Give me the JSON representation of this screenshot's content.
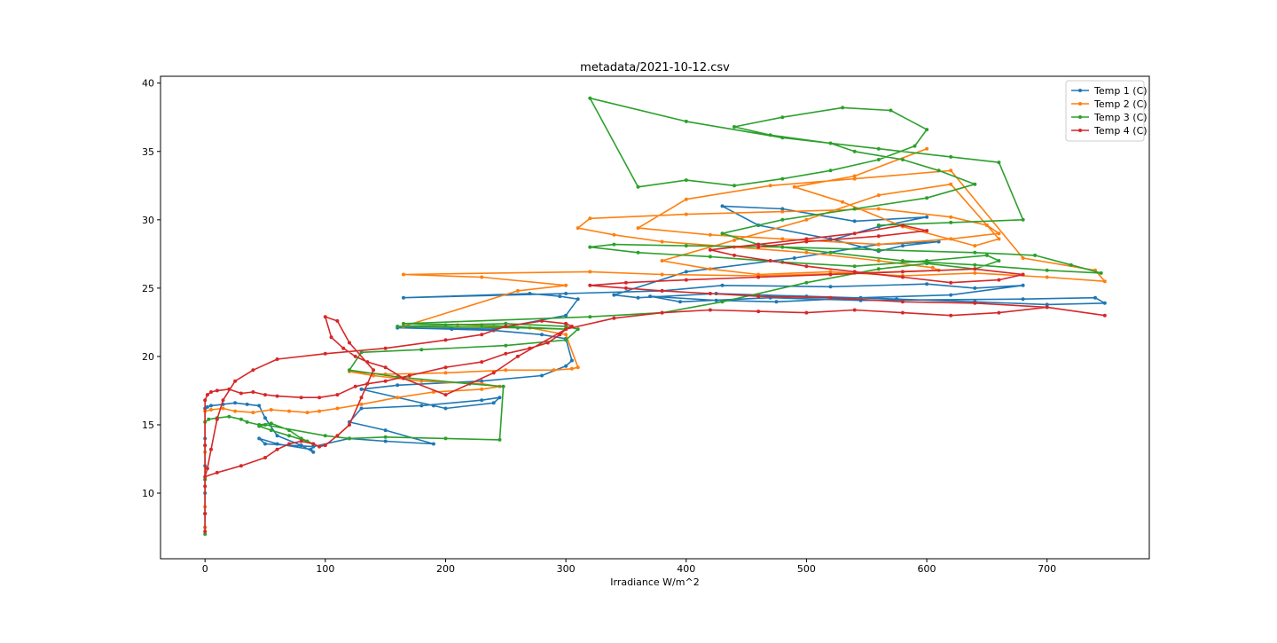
{
  "chart_data": {
    "type": "line",
    "title": "metadata/2021-10-12.csv",
    "xlabel": "Irradiance W/m^2",
    "ylabel": "",
    "xlim": [
      -37,
      785
    ],
    "ylim": [
      5.2,
      40.5
    ],
    "xticks": [
      0,
      100,
      200,
      300,
      400,
      500,
      600,
      700
    ],
    "yticks": [
      10,
      15,
      20,
      25,
      30,
      35,
      40
    ],
    "grid": false,
    "legend_position": "top-right",
    "marker": "circle",
    "series": [
      {
        "name": "Temp 1 (C)",
        "color": "#1f77b4",
        "x": [
          0,
          0,
          0,
          0,
          0,
          0,
          2,
          5,
          15,
          25,
          35,
          45,
          50,
          60,
          80,
          90,
          88,
          60,
          45,
          50,
          90,
          120,
          150,
          190,
          150,
          120,
          130,
          180,
          230,
          245,
          240,
          200,
          190,
          130,
          160,
          230,
          280,
          300,
          305,
          300,
          280,
          240,
          205,
          160,
          240,
          300,
          310,
          295,
          270,
          165,
          300,
          380,
          430,
          520,
          600,
          640,
          680,
          620,
          545,
          475,
          425,
          370,
          395,
          470,
          545,
          680,
          740,
          748,
          700,
          640,
          575,
          500,
          425,
          360,
          340,
          400,
          490,
          560,
          610,
          580,
          560,
          520,
          460,
          430,
          480,
          540,
          600,
          560,
          520
        ],
        "y": [
          7.5,
          8.5,
          10,
          12,
          14,
          16.2,
          16.3,
          16.4,
          16.5,
          16.6,
          16.5,
          16.4,
          15.5,
          14.2,
          13.5,
          13.0,
          13.2,
          13.6,
          14.0,
          13.6,
          13.4,
          14.0,
          13.8,
          13.6,
          14.6,
          15.2,
          16.2,
          16.4,
          16.8,
          17.0,
          16.6,
          16.2,
          16.4,
          17.6,
          17.9,
          18.2,
          18.6,
          19.3,
          19.7,
          21.3,
          21.6,
          21.9,
          22.0,
          22.1,
          22.0,
          23.0,
          24.2,
          24.4,
          24.6,
          24.3,
          24.6,
          24.8,
          25.2,
          25.1,
          25.3,
          25.0,
          25.2,
          24.5,
          24.3,
          24.0,
          24.1,
          24.4,
          24.0,
          24.3,
          24.1,
          24.2,
          24.3,
          23.9,
          23.8,
          24.0,
          24.2,
          24.4,
          24.6,
          24.3,
          24.5,
          26.2,
          27.2,
          28.2,
          28.4,
          28.1,
          27.7,
          28.6,
          29.6,
          31.0,
          30.8,
          29.9,
          30.2,
          29.5,
          28.5
        ]
      },
      {
        "name": "Temp 2 (C)",
        "color": "#ff7f0e",
        "x": [
          0,
          0,
          0,
          0,
          0,
          5,
          15,
          25,
          40,
          55,
          70,
          85,
          95,
          110,
          130,
          160,
          190,
          230,
          245,
          230,
          180,
          140,
          120,
          150,
          200,
          250,
          290,
          305,
          310,
          300,
          270,
          240,
          210,
          165,
          260,
          300,
          230,
          165,
          320,
          380,
          460,
          540,
          610,
          605,
          560,
          500,
          440,
          380,
          340,
          310,
          320,
          400,
          480,
          560,
          620,
          650,
          660,
          620,
          560,
          480,
          420,
          360,
          400,
          470,
          540,
          620,
          680,
          740,
          748,
          700,
          640,
          580,
          520,
          460,
          420,
          380,
          440,
          500,
          560,
          620,
          660,
          640,
          580,
          530,
          490,
          540,
          600
        ],
        "y": [
          7.5,
          9,
          11,
          13,
          16.0,
          16.1,
          16.2,
          16.0,
          15.9,
          16.1,
          16.0,
          15.9,
          16.0,
          16.2,
          16.5,
          17.0,
          17.4,
          17.6,
          17.8,
          18.0,
          18.2,
          18.6,
          18.9,
          18.7,
          18.8,
          19.0,
          19.0,
          19.1,
          19.2,
          21.6,
          22.1,
          22.2,
          22.3,
          22.2,
          24.8,
          25.2,
          25.8,
          26.0,
          26.2,
          26.0,
          25.9,
          26.1,
          26.3,
          26.5,
          27.0,
          27.6,
          28.0,
          28.4,
          28.9,
          29.4,
          30.1,
          30.4,
          30.6,
          30.8,
          30.2,
          29.6,
          29.0,
          28.6,
          28.2,
          28.6,
          28.9,
          29.4,
          31.5,
          32.5,
          33.0,
          33.6,
          27.2,
          26.3,
          25.5,
          25.8,
          26.1,
          25.9,
          26.2,
          26.0,
          26.4,
          27.0,
          28.5,
          30.0,
          31.8,
          32.6,
          28.6,
          28.1,
          29.5,
          31.3,
          32.4,
          33.2,
          35.2
        ]
      },
      {
        "name": "Temp 3 (C)",
        "color": "#2ca02c",
        "x": [
          0,
          0,
          0,
          0,
          0,
          3,
          10,
          20,
          30,
          35,
          45,
          55,
          70,
          80,
          90,
          85,
          70,
          55,
          45,
          50,
          100,
          120,
          150,
          200,
          245,
          248,
          220,
          160,
          120,
          130,
          180,
          250,
          300,
          310,
          300,
          250,
          200,
          160,
          260,
          300,
          230,
          165,
          320,
          380,
          430,
          500,
          560,
          600,
          640,
          660,
          650,
          600,
          540,
          480,
          420,
          360,
          320,
          340,
          400,
          480,
          560,
          640,
          690,
          720,
          745,
          700,
          640,
          580,
          520,
          460,
          430,
          480,
          540,
          600,
          640,
          610,
          580,
          540,
          520,
          470,
          440,
          480,
          530,
          570,
          600,
          590,
          560,
          520,
          480,
          440,
          400,
          360,
          320,
          400,
          480,
          560,
          620,
          660,
          680,
          620,
          560
        ],
        "y": [
          7.0,
          8.5,
          11,
          13.5,
          15.2,
          15.4,
          15.5,
          15.6,
          15.4,
          15.2,
          15.0,
          15.1,
          14.6,
          14.0,
          13.6,
          13.8,
          14.2,
          14.6,
          14.9,
          15.0,
          14.2,
          14.0,
          14.1,
          14.0,
          13.9,
          17.8,
          18.0,
          18.5,
          19.0,
          20.3,
          20.5,
          20.8,
          21.2,
          22.0,
          22.2,
          22.4,
          22.3,
          22.2,
          22.1,
          22.0,
          22.3,
          22.4,
          22.9,
          23.2,
          24.0,
          25.4,
          26.4,
          26.8,
          26.4,
          27.0,
          27.4,
          27.0,
          26.6,
          26.9,
          27.3,
          27.6,
          28.0,
          28.2,
          28.1,
          28.0,
          27.8,
          27.6,
          27.4,
          26.7,
          26.1,
          26.3,
          26.7,
          27.0,
          27.6,
          28.2,
          29.0,
          30.0,
          30.8,
          31.6,
          32.6,
          33.6,
          34.4,
          35.0,
          35.6,
          36.2,
          36.8,
          37.5,
          38.2,
          38.0,
          36.6,
          35.4,
          34.4,
          33.6,
          33.0,
          32.5,
          32.9,
          32.4,
          38.9,
          37.2,
          36.0,
          35.2,
          34.6,
          34.2,
          30.0,
          29.8,
          29.6
        ]
      },
      {
        "name": "Temp 4 (C)",
        "color": "#d62728",
        "x": [
          0,
          0,
          0,
          0,
          0,
          2,
          5,
          10,
          20,
          30,
          40,
          50,
          60,
          80,
          95,
          110,
          125,
          135,
          150,
          170,
          200,
          230,
          250,
          270,
          285,
          295,
          300,
          305,
          300,
          280,
          250,
          230,
          200,
          150,
          100,
          60,
          40,
          25,
          15,
          10,
          5,
          2,
          0,
          10,
          30,
          50,
          60,
          70,
          80,
          90,
          95,
          100,
          110,
          120,
          130,
          140,
          120,
          110,
          100,
          105,
          115,
          125,
          135,
          150,
          165,
          200,
          240,
          260,
          300,
          340,
          380,
          420,
          460,
          500,
          540,
          580,
          620,
          660,
          700,
          748,
          700,
          640,
          580,
          520,
          460,
          420,
          380,
          350,
          320,
          350,
          400,
          460,
          520,
          580,
          640,
          680,
          660,
          620,
          580,
          540,
          500,
          470,
          440,
          420,
          460,
          500,
          540,
          580,
          600,
          560,
          500,
          460
        ],
        "y": [
          7.2,
          8.5,
          10.5,
          13.5,
          16.8,
          17.2,
          17.4,
          17.5,
          17.6,
          17.3,
          17.4,
          17.2,
          17.1,
          17.0,
          17.0,
          17.2,
          17.8,
          18.0,
          18.2,
          18.6,
          19.2,
          19.6,
          20.2,
          20.6,
          21.0,
          21.6,
          22.0,
          22.2,
          22.4,
          22.6,
          22.2,
          21.6,
          21.2,
          20.6,
          20.2,
          19.8,
          19.0,
          18.2,
          16.8,
          15.4,
          13.2,
          11.8,
          11.2,
          11.5,
          12.0,
          12.6,
          13.2,
          13.6,
          13.8,
          13.6,
          13.4,
          13.5,
          14.2,
          15.0,
          17.0,
          19.0,
          21.0,
          22.6,
          22.9,
          21.4,
          20.6,
          20.0,
          19.6,
          19.2,
          18.4,
          17.2,
          18.8,
          20.0,
          22.0,
          22.8,
          23.2,
          23.4,
          23.3,
          23.2,
          23.4,
          23.2,
          23.0,
          23.2,
          23.6,
          23.0,
          23.6,
          23.9,
          24.0,
          24.3,
          24.4,
          24.6,
          24.8,
          25.0,
          25.2,
          25.4,
          25.6,
          25.8,
          26.0,
          26.2,
          26.4,
          26.0,
          25.6,
          25.4,
          25.8,
          26.2,
          26.6,
          27.0,
          27.4,
          27.8,
          28.2,
          28.6,
          29.0,
          29.6,
          29.2,
          28.8,
          28.4,
          28.0
        ]
      }
    ]
  }
}
